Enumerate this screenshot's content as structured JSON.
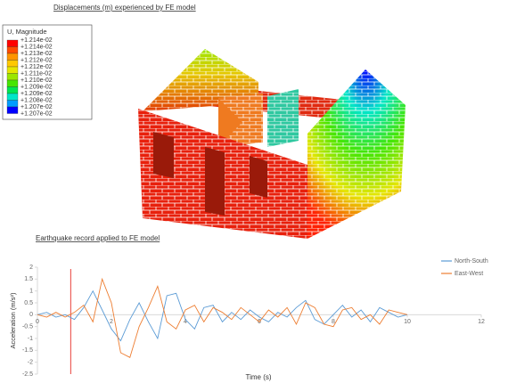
{
  "fe_model": {
    "title": "Displacements (m) experienced by FE model",
    "legend_title": "U, Magnitude",
    "legend_labels": [
      "+1.214e-02",
      "+1.214e-02",
      "+1.213e-02",
      "+1.212e-02",
      "+1.212e-02",
      "+1.211e-02",
      "+1.210e-02",
      "+1.209e-02",
      "+1.209e-02",
      "+1.208e-02",
      "+1.207e-02",
      "+1.207e-02"
    ],
    "legend_colors": [
      "#ff0000",
      "#ff4a00",
      "#ff9400",
      "#ffc800",
      "#e6e600",
      "#9ce600",
      "#46e600",
      "#00e650",
      "#00e6c8",
      "#009cff",
      "#0000ff"
    ]
  },
  "chart_data": {
    "type": "line",
    "title": "Earthquake record applied to FE model",
    "x_label": "Time (s)",
    "y_label": "Acceleration (m/s²)",
    "x": [
      0,
      0.25,
      0.5,
      0.75,
      1,
      1.25,
      1.5,
      1.75,
      2,
      2.25,
      2.5,
      2.75,
      3,
      3.25,
      3.5,
      3.75,
      4,
      4.25,
      4.5,
      4.75,
      5,
      5.25,
      5.5,
      5.75,
      6,
      6.25,
      6.5,
      6.75,
      7,
      7.25,
      7.5,
      7.75,
      8,
      8.25,
      8.5,
      8.75,
      9,
      9.25,
      9.5,
      9.75,
      10
    ],
    "series": [
      {
        "name": "North-South",
        "color": "#5b9bd5",
        "values": [
          0,
          0.1,
          -0.1,
          0,
          -0.2,
          0.3,
          1.0,
          0.2,
          -0.6,
          -1.1,
          -0.2,
          0.5,
          -0.3,
          -1.0,
          0.8,
          0.9,
          -0.2,
          -0.6,
          0.3,
          0.4,
          -0.3,
          0.1,
          -0.2,
          0.2,
          -0.1,
          -0.3,
          0.1,
          -0.1,
          0.3,
          0.6,
          -0.2,
          -0.4,
          0,
          0.4,
          -0.1,
          0.2,
          -0.3,
          0.3,
          0.1,
          -0.1,
          0
        ]
      },
      {
        "name": "East-West",
        "color": "#ed7d31",
        "values": [
          0,
          -0.1,
          0.1,
          -0.1,
          0.1,
          0.4,
          -0.3,
          1.5,
          0.5,
          -1.6,
          -1.8,
          -0.5,
          0.3,
          1.2,
          -0.3,
          -0.6,
          0.2,
          0.4,
          -0.3,
          0.3,
          0.1,
          -0.2,
          0.3,
          0,
          -0.3,
          0.2,
          -0.1,
          0.3,
          -0.4,
          0.5,
          0.3,
          -0.4,
          -0.5,
          0.2,
          0.3,
          -0.2,
          0,
          -0.4,
          0.2,
          0.1,
          0
        ]
      }
    ],
    "xlim": [
      0,
      12
    ],
    "xticks": [
      0,
      2,
      4,
      6,
      8,
      10,
      12
    ],
    "ylim": [
      -2.5,
      2
    ],
    "yticks": [
      -2.5,
      -2,
      -1.5,
      -1,
      -0.5,
      0,
      0.5,
      1,
      1.5,
      2
    ],
    "vline": {
      "x": 0.9,
      "color": "#e8423a"
    },
    "legend": "top-right"
  }
}
